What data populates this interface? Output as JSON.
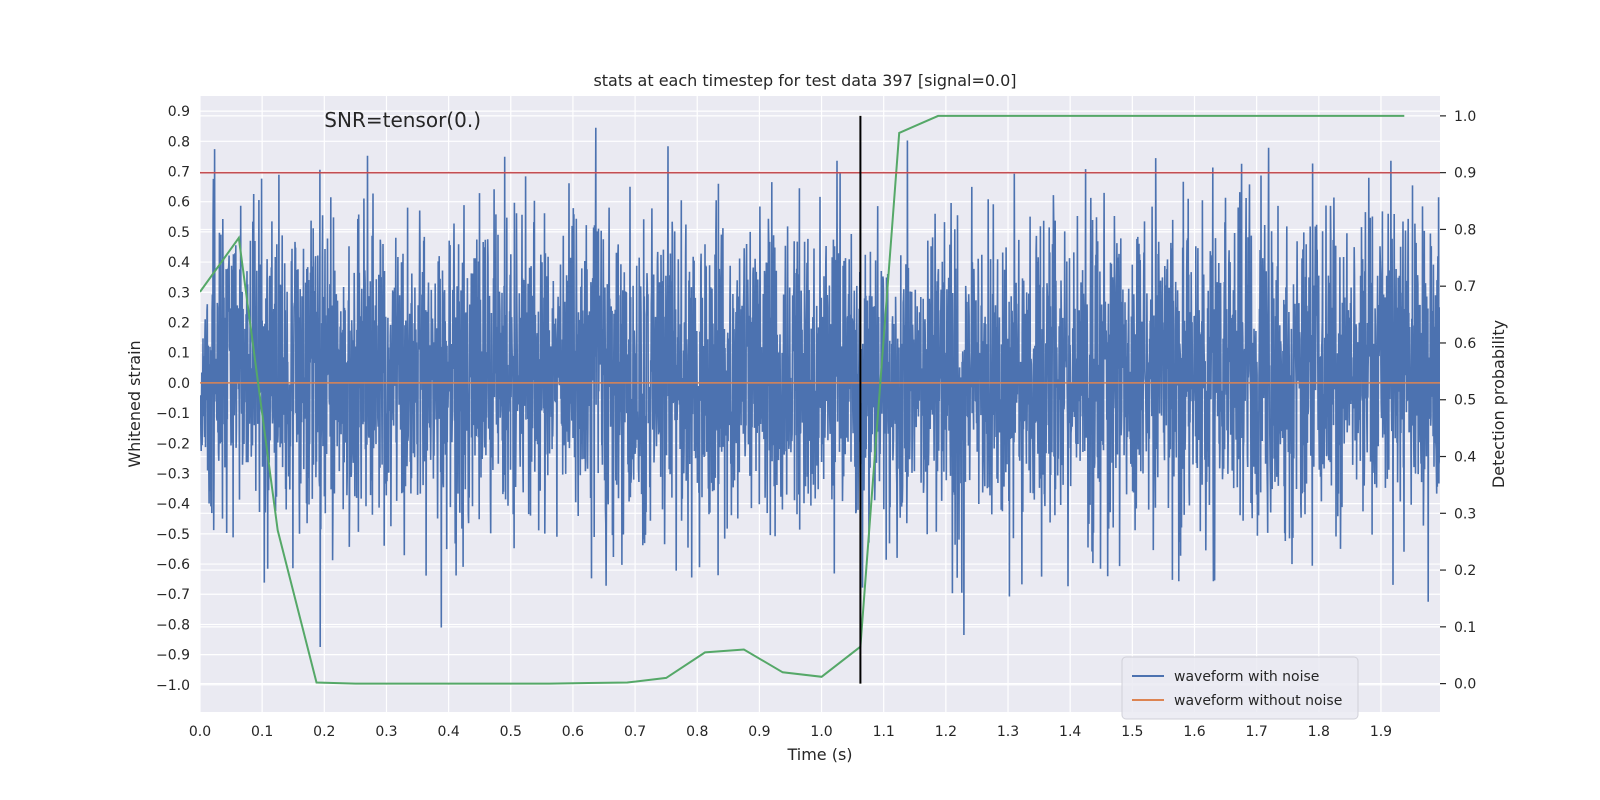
{
  "chart_data": {
    "type": "line",
    "title": "stats at each timestep for test data 397 [signal=0.0]",
    "xlabel": "Time (s)",
    "ylabel_left": "Whitened strain",
    "ylabel_right": "Detection probability",
    "xlim": [
      0.0,
      1.995
    ],
    "ylim_left": [
      -1.09,
      0.95
    ],
    "ylim_right": [
      -0.05,
      1.035
    ],
    "x_ticks": [
      0.0,
      0.1,
      0.2,
      0.3,
      0.4,
      0.5,
      0.6,
      0.7,
      0.8,
      0.9,
      1.0,
      1.1,
      1.2,
      1.3,
      1.4,
      1.5,
      1.6,
      1.7,
      1.8,
      1.9
    ],
    "x_tick_labels": [
      "0.0",
      "0.1",
      "0.2",
      "0.3",
      "0.4",
      "0.5",
      "0.6",
      "0.7",
      "0.8",
      "0.9",
      "1.0",
      "1.1",
      "1.2",
      "1.3",
      "1.4",
      "1.5",
      "1.6",
      "1.7",
      "1.8",
      "1.9"
    ],
    "y_left_ticks": [
      -1.0,
      -0.9,
      -0.8,
      -0.7,
      -0.6,
      -0.5,
      -0.4,
      -0.3,
      -0.2,
      -0.1,
      0.0,
      0.1,
      0.2,
      0.3,
      0.4,
      0.5,
      0.6,
      0.7,
      0.8,
      0.9
    ],
    "y_left_tick_labels": [
      "−1.0",
      "−0.9",
      "−0.8",
      "−0.7",
      "−0.6",
      "−0.5",
      "−0.4",
      "−0.3",
      "−0.2",
      "−0.1",
      "0.0",
      "0.1",
      "0.2",
      "0.3",
      "0.4",
      "0.5",
      "0.6",
      "0.7",
      "0.8",
      "0.9"
    ],
    "y_right_ticks": [
      0.0,
      0.1,
      0.2,
      0.3,
      0.4,
      0.5,
      0.6,
      0.7,
      0.8,
      0.9,
      1.0
    ],
    "y_right_tick_labels": [
      "0.0",
      "0.1",
      "0.2",
      "0.3",
      "0.4",
      "0.5",
      "0.6",
      "0.7",
      "0.8",
      "0.9",
      "1.0"
    ],
    "annotation": "SNR=tensor(0.)",
    "annotation_x": 0.2,
    "annotation_y": 0.87,
    "grid": true,
    "legend_position": "lower-right",
    "series": [
      {
        "name": "waveform with noise",
        "color": "#4c72b0",
        "axis": "left",
        "kind": "noise",
        "sample_rate": 2048,
        "duration": 2.0,
        "seed": 397,
        "std": 0.26,
        "clip": [
          -1.0,
          0.87
        ]
      },
      {
        "name": "waveform without noise",
        "color": "#dd8452",
        "axis": "left",
        "kind": "constant",
        "value": 0.0
      },
      {
        "name": "detection probability",
        "color": "#55a868",
        "axis": "right",
        "kind": "line",
        "show_in_legend": false,
        "x": [
          0.0,
          0.0625,
          0.125,
          0.1875,
          0.25,
          0.3125,
          0.375,
          0.4375,
          0.5,
          0.5625,
          0.625,
          0.6875,
          0.75,
          0.8125,
          0.875,
          0.9375,
          1.0,
          1.0625,
          1.125,
          1.1875,
          1.25,
          1.3125,
          1.375,
          1.4375,
          1.5,
          1.5625,
          1.625,
          1.6875,
          1.75,
          1.8125,
          1.875,
          1.9375
        ],
        "values": [
          0.69,
          0.785,
          0.27,
          0.002,
          0.0,
          0.0,
          0.0,
          0.0,
          0.0,
          0.0,
          0.001,
          0.002,
          0.01,
          0.055,
          0.06,
          0.02,
          0.012,
          0.065,
          0.97,
          1.0,
          1.0,
          1.0,
          1.0,
          1.0,
          1.0,
          1.0,
          1.0,
          1.0,
          1.0,
          1.0,
          1.0,
          1.0
        ]
      }
    ],
    "threshold_line": {
      "axis": "right",
      "value": 0.9,
      "color": "#c44e52"
    },
    "marker_line": {
      "x": 1.0625,
      "color": "#000000"
    }
  }
}
